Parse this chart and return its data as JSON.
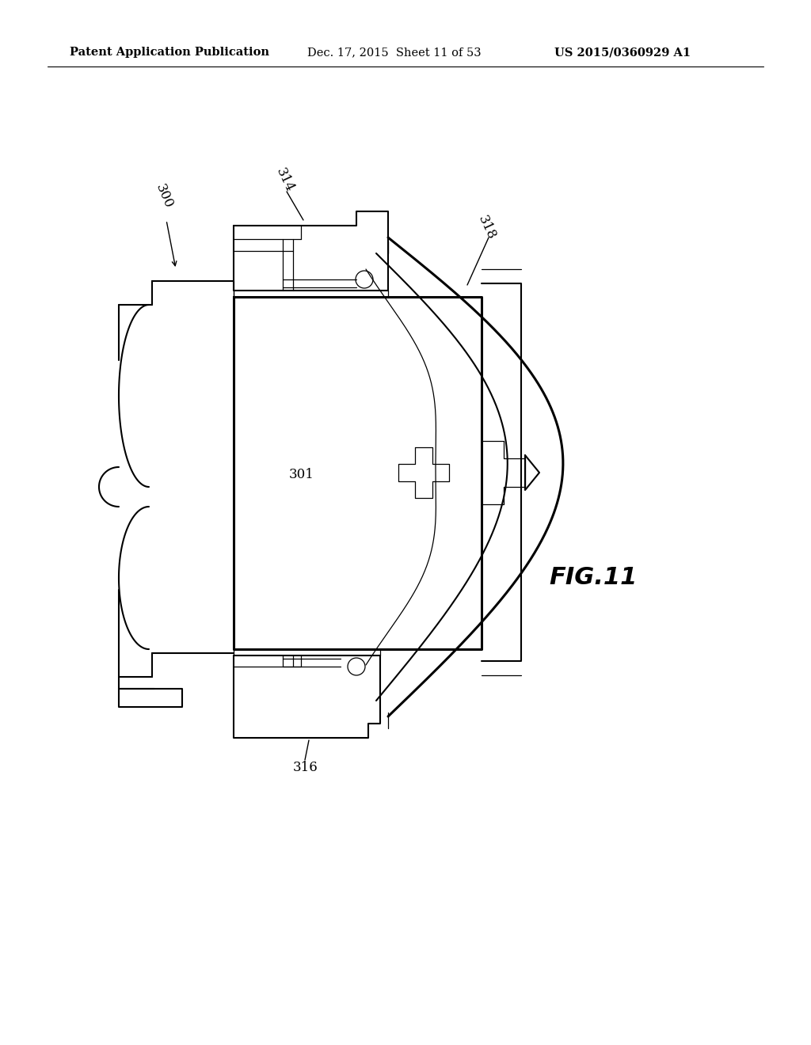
{
  "header_left": "Patent Application Publication",
  "header_middle": "Dec. 17, 2015  Sheet 11 of 53",
  "header_right": "US 2015/0360929 A1",
  "figure_label": "FIG.11",
  "ref_300": "300",
  "ref_301": "301",
  "ref_314": "314",
  "ref_316": "316",
  "ref_318": "318",
  "bg_color": "#ffffff",
  "line_color": "#000000",
  "lw": 1.5,
  "lw_thin": 0.9,
  "lw_thick": 2.2,
  "header_fontsize": 10.5,
  "label_fontsize": 12,
  "fig_label_fontsize": 22
}
